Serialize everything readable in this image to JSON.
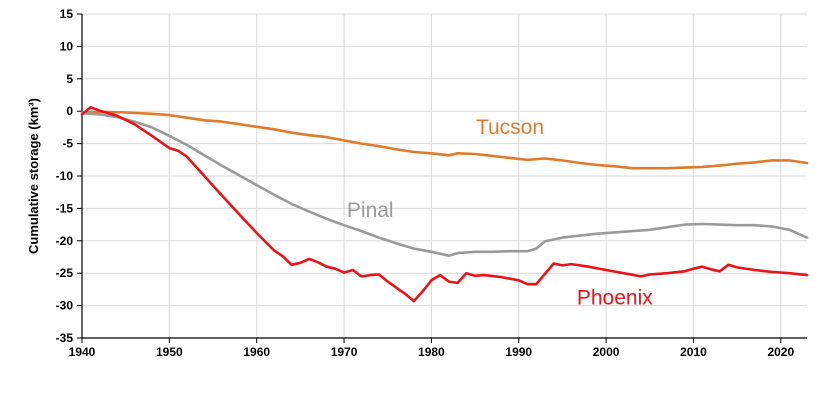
{
  "chart_data": {
    "type": "line",
    "title": "",
    "xlabel": "",
    "ylabel": "Cumulative storage (km³)",
    "xlim": [
      1940,
      2023
    ],
    "ylim": [
      -35,
      15
    ],
    "xticks": [
      1940,
      1950,
      1960,
      1970,
      1980,
      1990,
      2000,
      2010,
      2020
    ],
    "yticks": [
      15,
      10,
      5,
      0,
      -5,
      -10,
      -15,
      -20,
      -25,
      -30,
      -35
    ],
    "grid": true,
    "legend": "none",
    "series": [
      {
        "name": "Tucson",
        "color": "#E07B2E",
        "x": [
          1940,
          1942,
          1945,
          1948,
          1950,
          1952,
          1954,
          1956,
          1958,
          1960,
          1962,
          1964,
          1966,
          1968,
          1970,
          1972,
          1974,
          1976,
          1978,
          1980,
          1982,
          1983,
          1985,
          1987,
          1989,
          1991,
          1993,
          1995,
          1997,
          1999,
          2001,
          2003,
          2005,
          2007,
          2009,
          2011,
          2013,
          2015,
          2017,
          2019,
          2021,
          2023
        ],
        "y": [
          -0.2,
          -0.1,
          -0.2,
          -0.4,
          -0.6,
          -1.0,
          -1.4,
          -1.6,
          -2.0,
          -2.4,
          -2.8,
          -3.3,
          -3.7,
          -4.0,
          -4.5,
          -5.0,
          -5.4,
          -5.9,
          -6.3,
          -6.5,
          -6.8,
          -6.5,
          -6.6,
          -6.9,
          -7.2,
          -7.5,
          -7.3,
          -7.6,
          -8.0,
          -8.3,
          -8.5,
          -8.8,
          -8.8,
          -8.8,
          -8.7,
          -8.6,
          -8.4,
          -8.1,
          -7.9,
          -7.6,
          -7.6,
          -8.0
        ]
      },
      {
        "name": "Pinal",
        "color": "#9A9A9A",
        "x": [
          1940,
          1942,
          1944,
          1946,
          1948,
          1950,
          1952,
          1954,
          1956,
          1958,
          1960,
          1962,
          1964,
          1966,
          1968,
          1970,
          1972,
          1974,
          1976,
          1978,
          1980,
          1982,
          1983,
          1985,
          1987,
          1989,
          1991,
          1992,
          1993,
          1995,
          1997,
          1999,
          2001,
          2003,
          2005,
          2007,
          2009,
          2011,
          2013,
          2015,
          2017,
          2019,
          2021,
          2023
        ],
        "y": [
          -0.3,
          -0.5,
          -0.9,
          -1.6,
          -2.5,
          -3.8,
          -5.2,
          -6.8,
          -8.4,
          -9.9,
          -11.4,
          -12.9,
          -14.3,
          -15.5,
          -16.6,
          -17.6,
          -18.5,
          -19.5,
          -20.4,
          -21.2,
          -21.7,
          -22.3,
          -21.9,
          -21.7,
          -21.7,
          -21.6,
          -21.6,
          -21.2,
          -20.1,
          -19.5,
          -19.2,
          -18.9,
          -18.7,
          -18.5,
          -18.3,
          -17.9,
          -17.5,
          -17.4,
          -17.5,
          -17.6,
          -17.6,
          -17.8,
          -18.3,
          -19.5
        ]
      },
      {
        "name": "Phoenix",
        "color": "#E8141A",
        "x": [
          1940,
          1941,
          1942,
          1944,
          1946,
          1948,
          1950,
          1951,
          1952,
          1954,
          1956,
          1958,
          1960,
          1962,
          1963,
          1964,
          1965,
          1966,
          1967,
          1968,
          1969,
          1970,
          1971,
          1972,
          1973,
          1974,
          1975,
          1977,
          1978,
          1979,
          1980,
          1981,
          1982,
          1983,
          1984,
          1985,
          1986,
          1988,
          1990,
          1991,
          1992,
          1993,
          1994,
          1995,
          1996,
          1998,
          2000,
          2002,
          2004,
          2005,
          2007,
          2009,
          2010,
          2011,
          2012,
          2013,
          2014,
          2015,
          2017,
          2019,
          2021,
          2023
        ],
        "y": [
          -0.5,
          0.6,
          0.1,
          -0.7,
          -2.0,
          -3.8,
          -5.7,
          -6.1,
          -7.0,
          -10.0,
          -13.0,
          -15.9,
          -18.8,
          -21.5,
          -22.4,
          -23.7,
          -23.4,
          -22.8,
          -23.3,
          -24.0,
          -24.3,
          -24.9,
          -24.5,
          -25.5,
          -25.3,
          -25.2,
          -26.3,
          -28.2,
          -29.3,
          -27.8,
          -26.1,
          -25.3,
          -26.3,
          -26.5,
          -25.0,
          -25.4,
          -25.3,
          -25.6,
          -26.1,
          -26.7,
          -26.7,
          -25.1,
          -23.5,
          -23.8,
          -23.6,
          -24.0,
          -24.5,
          -25.0,
          -25.5,
          -25.2,
          -25.0,
          -24.7,
          -24.3,
          -24.0,
          -24.4,
          -24.7,
          -23.7,
          -24.1,
          -24.5,
          -24.8,
          -25.0,
          -25.3
        ]
      }
    ]
  }
}
